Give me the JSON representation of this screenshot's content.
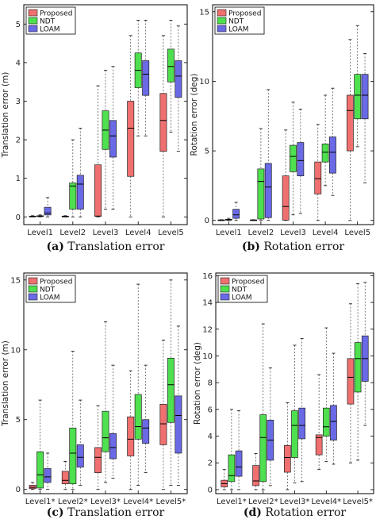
{
  "colors": {
    "Proposed": "#f07070",
    "NDT": "#4ee04e",
    "LOAM": "#6a6ae6"
  },
  "chart_data": [
    {
      "id": "a",
      "type": "box",
      "caption_letter": "(a)",
      "caption_text": "Translation error",
      "ylabel": "Translation error (m)",
      "ylim": [
        -0.2,
        5.5
      ],
      "yticks": [
        0,
        1,
        2,
        3,
        4,
        5
      ],
      "categories": [
        "Level1",
        "Level2",
        "Level3",
        "Level4",
        "Level5"
      ],
      "legend": [
        "Proposed",
        "NDT",
        "LOAM"
      ],
      "series": [
        {
          "name": "Proposed",
          "boxes": [
            {
              "min": 0,
              "q1": 0,
              "med": 0.01,
              "q3": 0.02,
              "max": 0.03
            },
            {
              "min": 0,
              "q1": 0,
              "med": 0.01,
              "q3": 0.02,
              "max": 0.03
            },
            {
              "min": 0,
              "q1": 0.02,
              "med": 0.02,
              "q3": 1.35,
              "max": 3.4
            },
            {
              "min": 0,
              "q1": 1.05,
              "med": 2.3,
              "q3": 3.0,
              "max": 4.7
            },
            {
              "min": 0,
              "q1": 1.7,
              "med": 2.5,
              "q3": 3.2,
              "max": 4.7
            }
          ]
        },
        {
          "name": "NDT",
          "boxes": [
            {
              "min": 0,
              "q1": 0.01,
              "med": 0.02,
              "q3": 0.03,
              "max": 0.05
            },
            {
              "min": 0,
              "q1": 0.2,
              "med": 0.8,
              "q3": 0.88,
              "max": 2.0
            },
            {
              "min": 0.2,
              "q1": 1.75,
              "med": 2.25,
              "q3": 2.75,
              "max": 3.8
            },
            {
              "min": 2.1,
              "q1": 3.35,
              "med": 3.8,
              "q3": 4.25,
              "max": 5.1
            },
            {
              "min": 2.2,
              "q1": 3.5,
              "med": 3.9,
              "q3": 4.35,
              "max": 5.1
            }
          ]
        },
        {
          "name": "LOAM",
          "boxes": [
            {
              "min": 0,
              "q1": 0.05,
              "med": 0.1,
              "q3": 0.25,
              "max": 0.5
            },
            {
              "min": 0,
              "q1": 0.2,
              "med": 0.85,
              "q3": 1.08,
              "max": 2.3
            },
            {
              "min": 0.2,
              "q1": 1.55,
              "med": 2.1,
              "q3": 2.5,
              "max": 3.9
            },
            {
              "min": 2.1,
              "q1": 3.15,
              "med": 3.7,
              "q3": 4.05,
              "max": 5.1
            },
            {
              "min": 1.7,
              "q1": 3.1,
              "med": 3.65,
              "q3": 4.05,
              "max": 4.95
            }
          ]
        }
      ]
    },
    {
      "id": "b",
      "type": "box",
      "caption_letter": "(b)",
      "caption_text": "Rotation error",
      "ylabel": "Rotation error (deg)",
      "ylim": [
        -0.3,
        15.5
      ],
      "yticks": [
        0,
        5,
        10,
        15
      ],
      "categories": [
        "Level1",
        "Level2",
        "Level3",
        "Level4",
        "Level5"
      ],
      "legend": [
        "Proposed",
        "NDT",
        "LOAM"
      ],
      "series": [
        {
          "name": "Proposed",
          "boxes": [
            {
              "min": 0,
              "q1": 0,
              "med": 0.02,
              "q3": 0.04,
              "max": 0.05
            },
            {
              "min": 0,
              "q1": 0,
              "med": 0.02,
              "q3": 0.04,
              "max": 0.05
            },
            {
              "min": 0,
              "q1": 0.02,
              "med": 1.0,
              "q3": 3.2,
              "max": 6.5
            },
            {
              "min": 0,
              "q1": 1.9,
              "med": 3.0,
              "q3": 4.2,
              "max": 6.9
            },
            {
              "min": 0,
              "q1": 5.0,
              "med": 7.9,
              "q3": 9.0,
              "max": 13.0
            }
          ]
        },
        {
          "name": "NDT",
          "boxes": [
            {
              "min": 0,
              "q1": 0.02,
              "med": 0.05,
              "q3": 0.08,
              "max": 0.15
            },
            {
              "min": 0,
              "q1": 0.1,
              "med": 2.8,
              "q3": 3.7,
              "max": 6.6
            },
            {
              "min": 0.4,
              "q1": 3.5,
              "med": 4.6,
              "q3": 5.4,
              "max": 8.5
            },
            {
              "min": 2.5,
              "q1": 4.2,
              "med": 4.9,
              "q3": 5.5,
              "max": 9.0
            },
            {
              "min": 5.3,
              "q1": 7.3,
              "med": 9.0,
              "q3": 10.5,
              "max": 14.0
            }
          ]
        },
        {
          "name": "LOAM",
          "boxes": [
            {
              "min": 0,
              "q1": 0.15,
              "med": 0.4,
              "q3": 0.8,
              "max": 1.3
            },
            {
              "min": 0,
              "q1": 0.2,
              "med": 2.4,
              "q3": 4.1,
              "max": 9.4
            },
            {
              "min": 0.5,
              "q1": 3.2,
              "med": 4.3,
              "q3": 5.6,
              "max": 8.0
            },
            {
              "min": 1.8,
              "q1": 3.4,
              "med": 4.9,
              "q3": 6.0,
              "max": 9.5
            },
            {
              "min": 2.7,
              "q1": 7.3,
              "med": 9.0,
              "q3": 10.5,
              "max": 12.0
            }
          ]
        }
      ]
    },
    {
      "id": "c",
      "type": "box",
      "caption_letter": "(c)",
      "caption_text": "Translation error",
      "ylabel": "Translation error (m)",
      "ylim": [
        -0.3,
        15.5
      ],
      "yticks": [
        0,
        5,
        10,
        15
      ],
      "categories": [
        "Level1*",
        "Level2*",
        "Level3*",
        "Level4*",
        "Level5*"
      ],
      "legend": [
        "Proposed",
        "NDT",
        "LOAM"
      ],
      "series": [
        {
          "name": "Proposed",
          "boxes": [
            {
              "min": 0,
              "q1": 0.05,
              "med": 0.15,
              "q3": 0.3,
              "max": 0.5
            },
            {
              "min": 0,
              "q1": 0.4,
              "med": 0.65,
              "q3": 1.3,
              "max": 2.0
            },
            {
              "min": 0,
              "q1": 1.2,
              "med": 2.3,
              "q3": 3.0,
              "max": 6.0
            },
            {
              "min": 0,
              "q1": 2.4,
              "med": 3.6,
              "q3": 5.2,
              "max": 8.5
            },
            {
              "min": 0,
              "q1": 3.2,
              "med": 4.7,
              "q3": 6.1,
              "max": 10.7
            }
          ]
        },
        {
          "name": "NDT",
          "boxes": [
            {
              "min": 0,
              "q1": 0.1,
              "med": 1.05,
              "q3": 2.7,
              "max": 6.4
            },
            {
              "min": 0,
              "q1": 0.4,
              "med": 2.6,
              "q3": 4.4,
              "max": 9.9
            },
            {
              "min": 0.5,
              "q1": 2.7,
              "med": 3.7,
              "q3": 5.6,
              "max": 12.0
            },
            {
              "min": 0.3,
              "q1": 3.6,
              "med": 4.5,
              "q3": 6.8,
              "max": 14.7
            },
            {
              "min": 0.3,
              "q1": 4.8,
              "med": 7.5,
              "q3": 9.4,
              "max": 15.0
            }
          ]
        },
        {
          "name": "LOAM",
          "boxes": [
            {
              "min": 0,
              "q1": 0.5,
              "med": 0.9,
              "q3": 1.5,
              "max": 2.6
            },
            {
              "min": 0.3,
              "q1": 1.6,
              "med": 2.3,
              "q3": 3.2,
              "max": 6.4
            },
            {
              "min": 0.8,
              "q1": 2.2,
              "med": 3.0,
              "q3": 4.0,
              "max": 8.9
            },
            {
              "min": 1.2,
              "q1": 3.3,
              "med": 4.4,
              "q3": 5.0,
              "max": 8.9
            },
            {
              "min": 0.3,
              "q1": 2.6,
              "med": 5.3,
              "q3": 6.7,
              "max": 11.7
            }
          ]
        }
      ]
    },
    {
      "id": "d",
      "type": "box",
      "caption_letter": "(d)",
      "caption_text": "Rotation error",
      "ylabel": "Rotation error (deg)",
      "ylim": [
        -0.3,
        16.2
      ],
      "yticks": [
        0,
        2,
        4,
        6,
        8,
        10,
        12,
        14,
        16
      ],
      "categories": [
        "Level1*",
        "Level2*",
        "Level3*",
        "Level4*",
        "Level5*"
      ],
      "legend": [
        "Proposed",
        "NDT",
        "LOAM"
      ],
      "series": [
        {
          "name": "Proposed",
          "boxes": [
            {
              "min": 0,
              "q1": 0.2,
              "med": 0.45,
              "q3": 0.7,
              "max": 1.5
            },
            {
              "min": 0,
              "q1": 0.3,
              "med": 0.65,
              "q3": 1.8,
              "max": 2.7
            },
            {
              "min": 0,
              "q1": 1.3,
              "med": 2.4,
              "q3": 3.3,
              "max": 6.5
            },
            {
              "min": 1.5,
              "q1": 2.6,
              "med": 3.9,
              "q3": 4.1,
              "max": 8.6
            },
            {
              "min": 2.0,
              "q1": 6.4,
              "med": 8.4,
              "q3": 9.8,
              "max": 13.9
            }
          ]
        },
        {
          "name": "NDT",
          "boxes": [
            {
              "min": 0,
              "q1": 0.6,
              "med": 1.05,
              "q3": 2.6,
              "max": 6.0
            },
            {
              "min": 0,
              "q1": 0.6,
              "med": 3.9,
              "q3": 5.6,
              "max": 12.4
            },
            {
              "min": 0.5,
              "q1": 2.4,
              "med": 4.8,
              "q3": 5.9,
              "max": 10.8
            },
            {
              "min": 2.1,
              "q1": 4.0,
              "med": 4.7,
              "q3": 6.1,
              "max": 12.1
            },
            {
              "min": 2.2,
              "q1": 7.3,
              "med": 9.8,
              "q3": 11.0,
              "max": 15.4
            }
          ]
        },
        {
          "name": "LOAM",
          "boxes": [
            {
              "min": 0,
              "q1": 1.0,
              "med": 1.7,
              "q3": 2.9,
              "max": 5.9
            },
            {
              "min": 0.3,
              "q1": 2.2,
              "med": 3.7,
              "q3": 5.2,
              "max": 9.1
            },
            {
              "min": 0.6,
              "q1": 3.8,
              "med": 4.8,
              "q3": 6.1,
              "max": 11.3
            },
            {
              "min": 1.9,
              "q1": 3.7,
              "med": 5.1,
              "q3": 6.3,
              "max": 10.2
            },
            {
              "min": 4.8,
              "q1": 8.1,
              "med": 9.8,
              "q3": 11.5,
              "max": 15.5
            }
          ]
        }
      ]
    }
  ]
}
